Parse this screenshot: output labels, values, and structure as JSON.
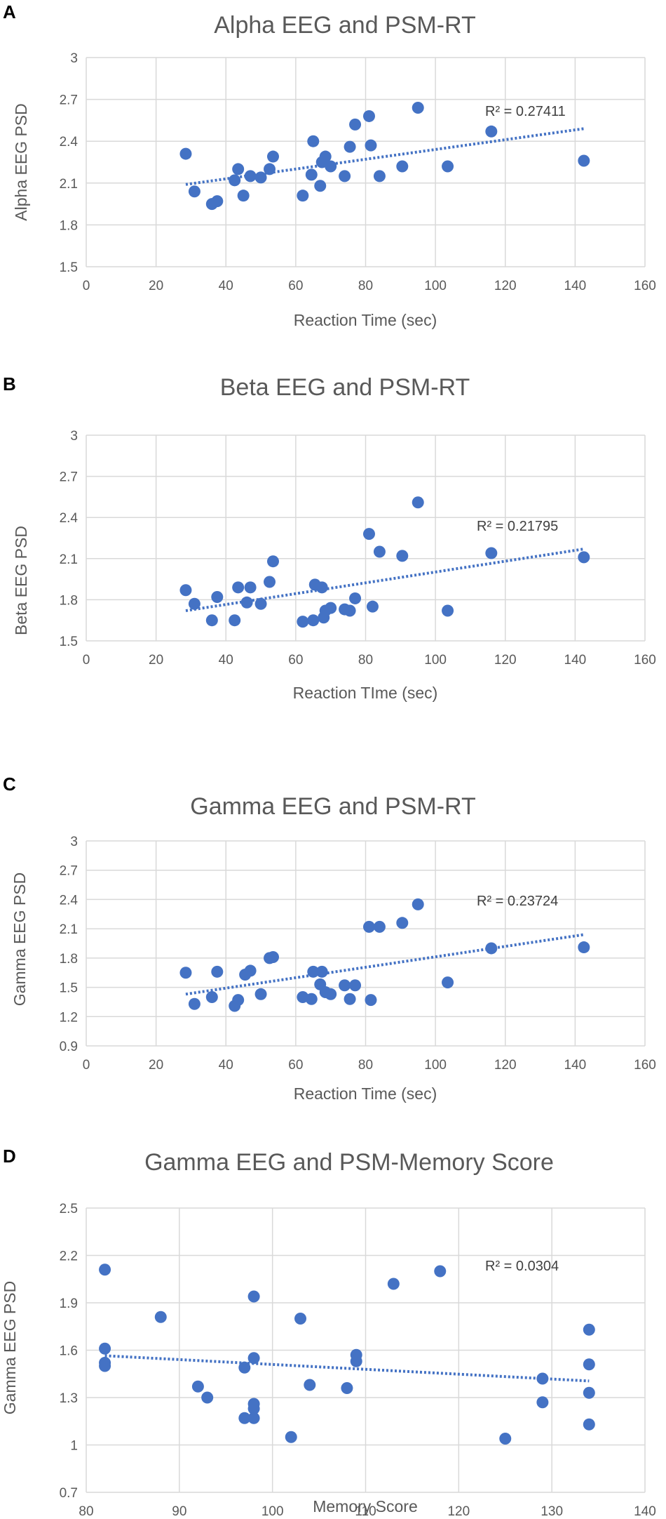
{
  "colors": {
    "marker": "#4472c4",
    "trend": "#4472c4"
  },
  "chart_data": [
    {
      "panel_label": "A",
      "type": "scatter",
      "title": "Alpha EEG and PSM-RT",
      "xlabel": "Reaction Time (sec)",
      "ylabel": "Alpha EEG PSD",
      "xlim": [
        0,
        160
      ],
      "ylim": [
        1.5,
        3
      ],
      "xticks": [
        0,
        20,
        40,
        60,
        80,
        100,
        120,
        140,
        160
      ],
      "yticks": [
        1.5,
        1.8,
        2.1,
        2.4,
        2.7,
        3
      ],
      "xtick_labels": [
        "0",
        "20",
        "40",
        "60",
        "80",
        "100",
        "120",
        "140",
        "160"
      ],
      "ytick_labels": [
        "1.5",
        "1.8",
        "2.1",
        "2.4",
        "2.7",
        "3"
      ],
      "r2_label": "R² = 0.27411",
      "trendline": {
        "x": [
          28.5,
          142.5
        ],
        "y": [
          2.09,
          2.49
        ]
      },
      "points": [
        [
          28.5,
          2.31
        ],
        [
          31,
          2.04
        ],
        [
          36,
          1.95
        ],
        [
          37.5,
          1.97
        ],
        [
          42.5,
          2.12
        ],
        [
          43.5,
          2.2
        ],
        [
          45,
          2.01
        ],
        [
          47,
          2.15
        ],
        [
          50,
          2.14
        ],
        [
          52.5,
          2.2
        ],
        [
          53.5,
          2.29
        ],
        [
          62,
          2.01
        ],
        [
          64.5,
          2.16
        ],
        [
          65,
          2.4
        ],
        [
          67,
          2.08
        ],
        [
          67.5,
          2.25
        ],
        [
          68.5,
          2.29
        ],
        [
          70,
          2.22
        ],
        [
          74,
          2.15
        ],
        [
          75.5,
          2.36
        ],
        [
          77,
          2.52
        ],
        [
          81,
          2.58
        ],
        [
          81.5,
          2.37
        ],
        [
          84,
          2.15
        ],
        [
          90.5,
          2.22
        ],
        [
          95,
          2.64
        ],
        [
          103.5,
          2.22
        ],
        [
          116,
          2.47
        ],
        [
          142.5,
          2.26
        ]
      ]
    },
    {
      "panel_label": "B",
      "type": "scatter",
      "title": "Beta EEG and PSM-RT",
      "xlabel": "Reaction TIme (sec)",
      "ylabel": "Beta EEG PSD",
      "xlim": [
        0,
        160
      ],
      "ylim": [
        1.5,
        3
      ],
      "xticks": [
        0,
        20,
        40,
        60,
        80,
        100,
        120,
        140,
        160
      ],
      "yticks": [
        1.5,
        1.8,
        2.1,
        2.4,
        2.7,
        3
      ],
      "xtick_labels": [
        "0",
        "20",
        "40",
        "60",
        "80",
        "100",
        "120",
        "140",
        "160"
      ],
      "ytick_labels": [
        "1.5",
        "1.8",
        "2.1",
        "2.4",
        "2.7",
        "3"
      ],
      "r2_label": "R² = 0.21795",
      "trendline": {
        "x": [
          28.5,
          142.5
        ],
        "y": [
          1.72,
          2.17
        ]
      },
      "points": [
        [
          28.5,
          1.87
        ],
        [
          31,
          1.77
        ],
        [
          36,
          1.65
        ],
        [
          37.5,
          1.82
        ],
        [
          42.5,
          1.65
        ],
        [
          43.5,
          1.89
        ],
        [
          46,
          1.78
        ],
        [
          47,
          1.89
        ],
        [
          50,
          1.77
        ],
        [
          52.5,
          1.93
        ],
        [
          53.5,
          2.08
        ],
        [
          62,
          1.64
        ],
        [
          65,
          1.65
        ],
        [
          65.5,
          1.91
        ],
        [
          67.5,
          1.89
        ],
        [
          68,
          1.67
        ],
        [
          68.5,
          1.72
        ],
        [
          70,
          1.74
        ],
        [
          74,
          1.73
        ],
        [
          75.5,
          1.72
        ],
        [
          77,
          1.81
        ],
        [
          81,
          2.28
        ],
        [
          82,
          1.75
        ],
        [
          84,
          2.15
        ],
        [
          90.5,
          2.12
        ],
        [
          95,
          2.51
        ],
        [
          103.5,
          1.72
        ],
        [
          116,
          2.14
        ],
        [
          142.5,
          2.11
        ]
      ]
    },
    {
      "panel_label": "C",
      "type": "scatter",
      "title": "Gamma EEG and PSM-RT",
      "xlabel": "Reaction Time (sec)",
      "ylabel": "Gamma EEG PSD",
      "xlim": [
        0,
        160
      ],
      "ylim": [
        0.9,
        3
      ],
      "xticks": [
        0,
        20,
        40,
        60,
        80,
        100,
        120,
        140,
        160
      ],
      "yticks": [
        0.9,
        1.2,
        1.5,
        1.8,
        2.1,
        2.4,
        2.7,
        3
      ],
      "xtick_labels": [
        "0",
        "20",
        "40",
        "60",
        "80",
        "100",
        "120",
        "140",
        "160"
      ],
      "ytick_labels": [
        "0.9",
        "1.2",
        "1.5",
        "1.8",
        "2.1",
        "2.4",
        "2.7",
        "3"
      ],
      "r2_label": "R² = 0.23724",
      "trendline": {
        "x": [
          28.5,
          142.5
        ],
        "y": [
          1.43,
          2.04
        ]
      },
      "points": [
        [
          28.5,
          1.65
        ],
        [
          31,
          1.33
        ],
        [
          36,
          1.4
        ],
        [
          37.5,
          1.66
        ],
        [
          42.5,
          1.31
        ],
        [
          43.5,
          1.37
        ],
        [
          45.5,
          1.63
        ],
        [
          47,
          1.67
        ],
        [
          50,
          1.43
        ],
        [
          52.5,
          1.8
        ],
        [
          53.5,
          1.81
        ],
        [
          62,
          1.4
        ],
        [
          64.5,
          1.38
        ],
        [
          65,
          1.66
        ],
        [
          67,
          1.53
        ],
        [
          67.5,
          1.66
        ],
        [
          68.5,
          1.45
        ],
        [
          70,
          1.43
        ],
        [
          74,
          1.52
        ],
        [
          75.5,
          1.38
        ],
        [
          77,
          1.52
        ],
        [
          81,
          2.12
        ],
        [
          81.5,
          1.37
        ],
        [
          84,
          2.12
        ],
        [
          90.5,
          2.16
        ],
        [
          95,
          2.35
        ],
        [
          103.5,
          1.55
        ],
        [
          116,
          1.9
        ],
        [
          142.5,
          1.91
        ]
      ]
    },
    {
      "panel_label": "D",
      "type": "scatter",
      "title": "Gamma EEG and PSM-Memory Score",
      "xlabel": "Memory Score",
      "ylabel": "Gamma EEG PSD",
      "xlim": [
        80,
        140
      ],
      "ylim": [
        0.7,
        2.5
      ],
      "xticks": [
        80,
        90,
        100,
        110,
        120,
        130,
        140
      ],
      "yticks": [
        0.7,
        1,
        1.3,
        1.6,
        1.9,
        2.2,
        2.5
      ],
      "xtick_labels": [
        "80",
        "90",
        "100",
        "110",
        "120",
        "130",
        "140"
      ],
      "ytick_labels": [
        "0.7",
        "1",
        "1.3",
        "1.6",
        "1.9",
        "2.2",
        "2.5"
      ],
      "r2_label": "R² = 0.0304",
      "trendline": {
        "x": [
          82,
          134
        ],
        "y": [
          1.565,
          1.405
        ]
      },
      "points": [
        [
          82,
          2.11
        ],
        [
          82,
          1.61
        ],
        [
          82,
          1.52
        ],
        [
          82,
          1.5
        ],
        [
          88,
          1.81
        ],
        [
          92,
          1.37
        ],
        [
          93,
          1.3
        ],
        [
          97,
          1.49
        ],
        [
          97,
          1.17
        ],
        [
          98,
          1.94
        ],
        [
          98,
          1.55
        ],
        [
          98,
          1.26
        ],
        [
          98,
          1.23
        ],
        [
          98,
          1.17
        ],
        [
          102,
          1.05
        ],
        [
          103,
          1.8
        ],
        [
          104,
          1.38
        ],
        [
          108,
          1.36
        ],
        [
          109,
          1.57
        ],
        [
          109,
          1.53
        ],
        [
          113,
          2.02
        ],
        [
          118,
          2.1
        ],
        [
          125,
          1.04
        ],
        [
          129,
          1.42
        ],
        [
          129,
          1.27
        ],
        [
          134,
          1.73
        ],
        [
          134,
          1.51
        ],
        [
          134,
          1.33
        ],
        [
          134,
          1.13
        ]
      ]
    }
  ]
}
